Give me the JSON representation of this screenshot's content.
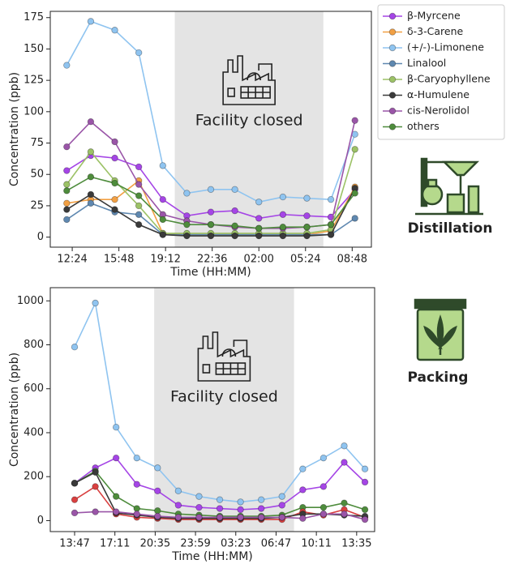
{
  "chart_data": [
    {
      "type": "line",
      "x_label": "Time (HH:MM)",
      "y_label": "Concentration (ppb)",
      "annotation": "Facility closed",
      "side_label": "Distillation",
      "shade": [
        19.87,
        30.7
      ],
      "xlim": [
        10.8,
        34.2
      ],
      "ylim": [
        -8,
        180
      ],
      "xticks": [
        {
          "value": 12.4,
          "label": "12:24"
        },
        {
          "value": 15.8,
          "label": "15:48"
        },
        {
          "value": 19.2,
          "label": "19:12"
        },
        {
          "value": 22.6,
          "label": "22:36"
        },
        {
          "value": 26.0,
          "label": "02:00"
        },
        {
          "value": 29.4,
          "label": "05:24"
        },
        {
          "value": 32.8,
          "label": "08:48"
        }
      ],
      "yticks": [
        0,
        25,
        50,
        75,
        100,
        125,
        150,
        175
      ],
      "legend": "outside right",
      "x": [
        12.0,
        13.75,
        15.5,
        17.25,
        19.0,
        20.75,
        22.5,
        24.25,
        26.0,
        27.75,
        29.5,
        31.25,
        33.0
      ],
      "series": [
        {
          "name": "β-Myrcene",
          "color": "#a545e6",
          "values": [
            53,
            65,
            63,
            56,
            30,
            17,
            20,
            21,
            15,
            18,
            17,
            16,
            38
          ]
        },
        {
          "name": "δ-3-Carene",
          "color": "#f2a044",
          "values": [
            27,
            30,
            30,
            45,
            3,
            2,
            2,
            2,
            2,
            2,
            2,
            5,
            40
          ]
        },
        {
          "name": "(+/-)-Limonene",
          "color": "#8fc4f0",
          "values": [
            137,
            172,
            165,
            147,
            57,
            35,
            38,
            38,
            28,
            32,
            31,
            30,
            82
          ]
        },
        {
          "name": "Linalool",
          "color": "#5f88b0",
          "values": [
            14,
            27,
            20,
            18,
            2,
            2,
            2,
            2,
            2,
            2,
            2,
            2,
            15
          ]
        },
        {
          "name": "β-Caryophyllene",
          "color": "#9cc266",
          "values": [
            42,
            68,
            45,
            25,
            3,
            3,
            3,
            3,
            3,
            3,
            3,
            6,
            70
          ]
        },
        {
          "name": "α-Humulene",
          "color": "#3a3a3a",
          "values": [
            22,
            34,
            22,
            10,
            2,
            1,
            1,
            1,
            1,
            1,
            1,
            2,
            39
          ]
        },
        {
          "name": "cis-Nerolidol",
          "color": "#9a55a8",
          "values": [
            72,
            92,
            76,
            42,
            18,
            13,
            10,
            8,
            7,
            7,
            8,
            10,
            93
          ]
        },
        {
          "name": "others",
          "color": "#4e8c3c",
          "values": [
            37,
            48,
            43,
            33,
            14,
            10,
            10,
            9,
            7,
            8,
            8,
            10,
            35
          ]
        }
      ]
    },
    {
      "type": "line",
      "x_label": "Time (HH:MM)",
      "y_label": "Concentration (ppb)",
      "annotation": "Facility closed",
      "side_label": "Packing",
      "shade": [
        20.5,
        32.3
      ],
      "xlim": [
        11.73,
        39.1
      ],
      "ylim": [
        -50,
        1060
      ],
      "xticks": [
        {
          "value": 13.783,
          "label": "13:47"
        },
        {
          "value": 17.183,
          "label": "17:11"
        },
        {
          "value": 20.583,
          "label": "20:35"
        },
        {
          "value": 23.983,
          "label": "23:59"
        },
        {
          "value": 27.383,
          "label": "03:23"
        },
        {
          "value": 30.783,
          "label": "06:47"
        },
        {
          "value": 34.183,
          "label": "10:11"
        },
        {
          "value": 37.583,
          "label": "13:35"
        }
      ],
      "yticks": [
        0,
        200,
        400,
        600,
        800,
        1000
      ],
      "x": [
        13.783,
        15.533,
        17.283,
        19.033,
        20.783,
        22.533,
        24.283,
        26.033,
        27.783,
        29.533,
        31.283,
        33.033,
        34.783,
        36.533,
        38.283
      ],
      "series": [
        {
          "color": "#8fc4f0",
          "values": [
            790,
            990,
            425,
            285,
            240,
            135,
            110,
            95,
            85,
            95,
            110,
            235,
            285,
            340,
            235
          ]
        },
        {
          "color": "#a545e6",
          "values": [
            170,
            240,
            285,
            165,
            135,
            70,
            60,
            55,
            50,
            55,
            70,
            140,
            155,
            265,
            175
          ]
        },
        {
          "color": "#4e8c3c",
          "values": [
            170,
            225,
            110,
            55,
            45,
            30,
            25,
            20,
            20,
            20,
            25,
            60,
            60,
            80,
            50
          ]
        },
        {
          "color": "#d94040",
          "values": [
            95,
            155,
            30,
            15,
            10,
            5,
            5,
            5,
            5,
            5,
            5,
            40,
            25,
            50,
            15
          ]
        },
        {
          "color": "#3a3a3a",
          "values": [
            170,
            220,
            35,
            25,
            15,
            10,
            10,
            10,
            10,
            10,
            15,
            30,
            30,
            25,
            20
          ]
        },
        {
          "color": "#9a55a8",
          "values": [
            35,
            40,
            40,
            30,
            20,
            15,
            15,
            15,
            15,
            15,
            15,
            10,
            30,
            30,
            5
          ]
        }
      ]
    }
  ]
}
